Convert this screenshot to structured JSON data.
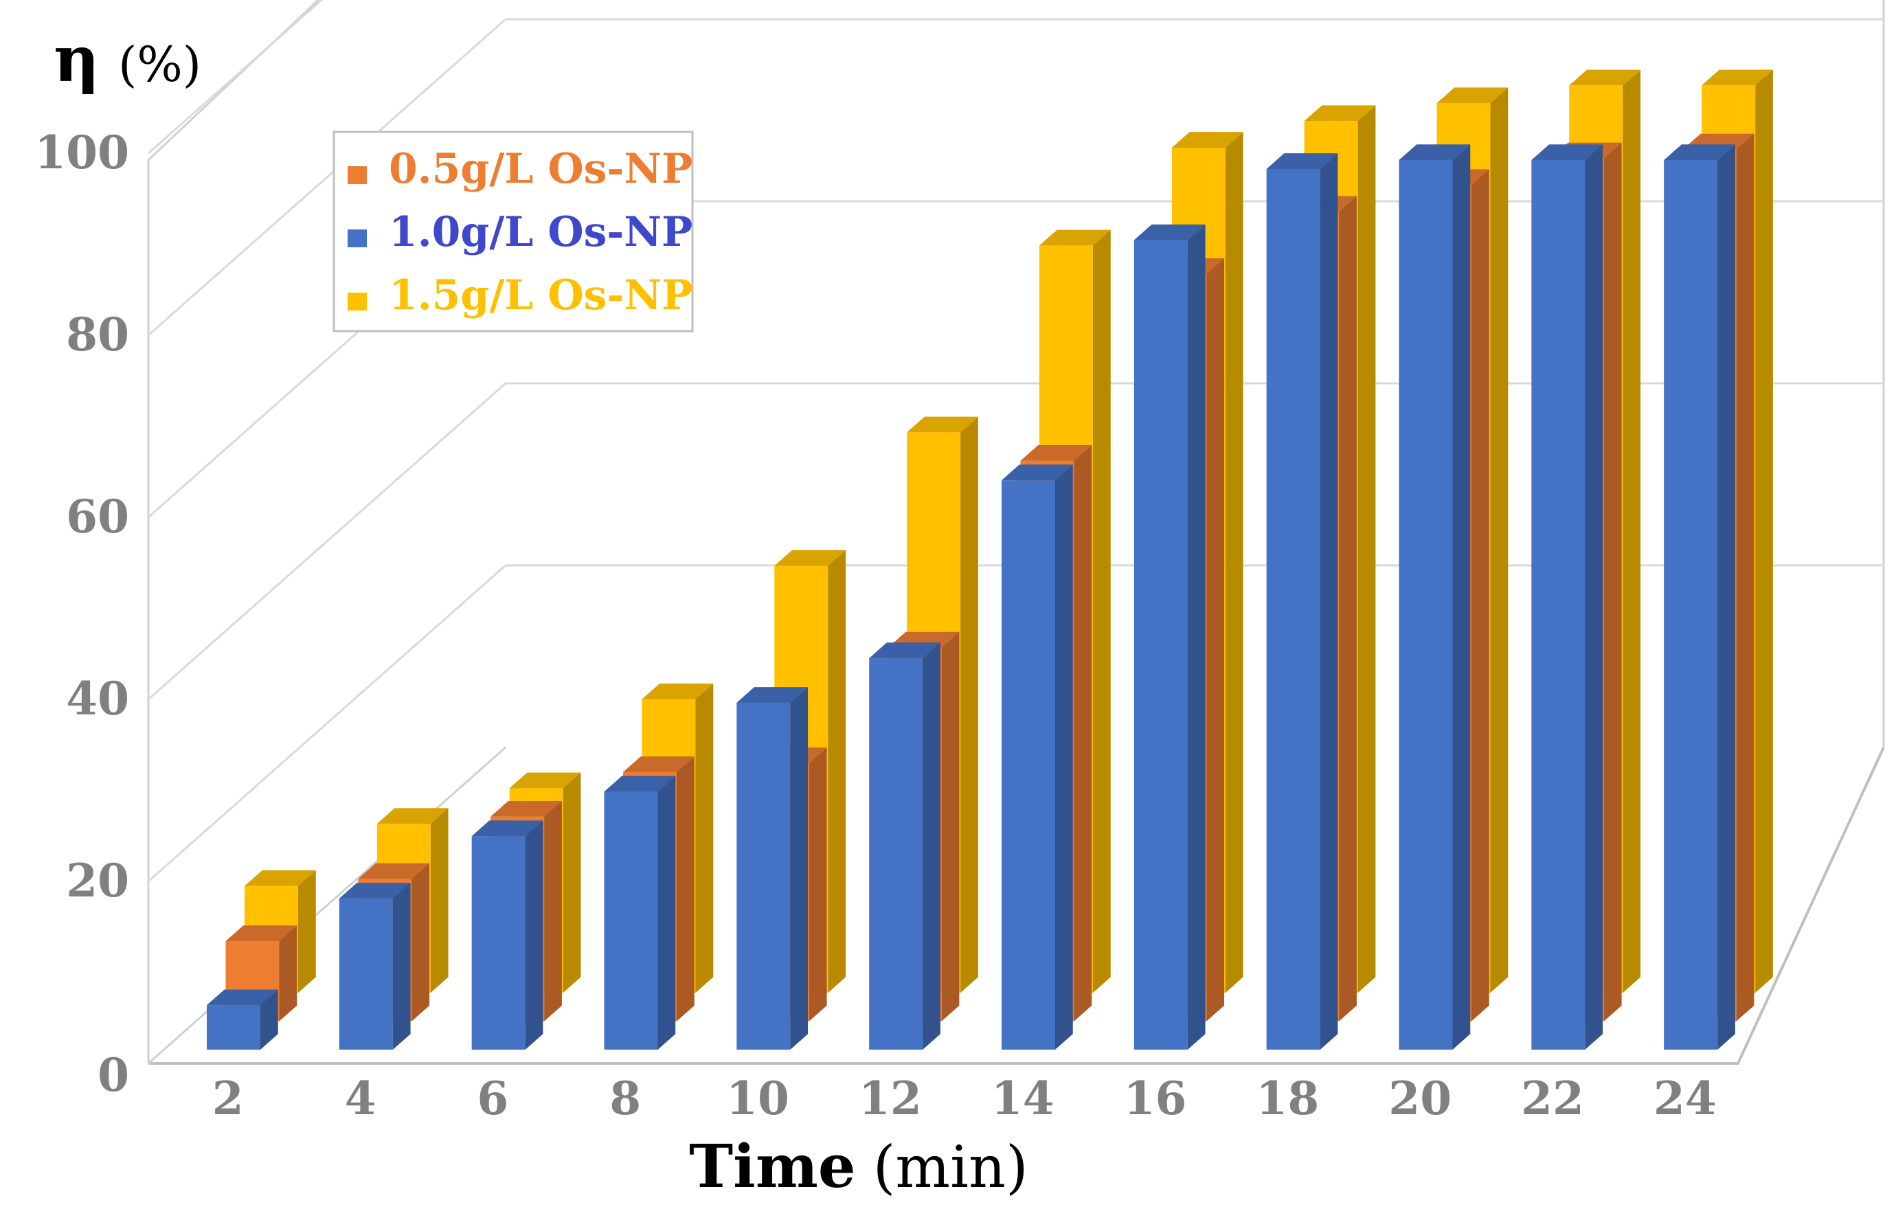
{
  "chart_data": {
    "type": "bar",
    "style": "3d-clustered-column",
    "title": "",
    "ylabel": {
      "symbol": "η",
      "unit": "(%)"
    },
    "xlabel": {
      "main": "Time",
      "unit": "(min)"
    },
    "categories": [
      "2",
      "4",
      "6",
      "8",
      "10",
      "12",
      "14",
      "16",
      "18",
      "20",
      "22",
      "24"
    ],
    "y_ticks": [
      "0",
      "20",
      "40",
      "60",
      "80",
      "100"
    ],
    "ylim": [
      0,
      100
    ],
    "grid": true,
    "legend_position": "top-left",
    "series": [
      {
        "name": "0.5g/L Os-NP",
        "color": "#ED7D31",
        "values": [
          9,
          16,
          23,
          28,
          29,
          42,
          63,
          84,
          91,
          94,
          97,
          98
        ]
      },
      {
        "name": "1.0g/L Os-NP",
        "color": "#4472C4",
        "values": [
          5,
          17,
          24,
          29,
          39,
          44,
          64,
          91,
          99,
          100,
          100,
          100
        ]
      },
      {
        "name": "1.5g/L Os-NP",
        "color": "#FFC000",
        "values": [
          12,
          19,
          23,
          33,
          48,
          63,
          84,
          95,
          98,
          100,
          102,
          102
        ]
      }
    ]
  }
}
